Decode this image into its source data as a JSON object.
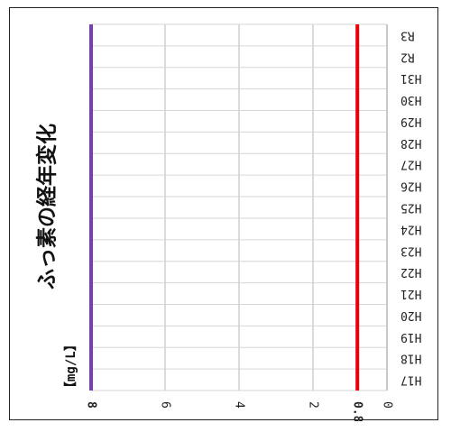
{
  "chart_data": {
    "type": "line",
    "title": "ふっ素の経年変化",
    "ylabel": "【mg/L】",
    "categories": [
      "H17",
      "H18",
      "H19",
      "H20",
      "H21",
      "H22",
      "H23",
      "H24",
      "H25",
      "H26",
      "H27",
      "H28",
      "H29",
      "H30",
      "H31",
      "R2",
      "R3"
    ],
    "ylim": [
      0,
      8
    ],
    "yticks": [
      "0",
      "0.8",
      "2",
      "4",
      "6",
      "8"
    ],
    "yticks_highlight": {
      "0.8": "#e8000b",
      "8": "#7a3db8"
    },
    "grid": true,
    "series": [
      {
        "values": [
          8,
          8,
          8,
          8,
          8,
          8,
          8,
          8,
          8,
          8,
          8,
          8,
          8,
          8,
          8,
          8,
          8
        ],
        "color": "#7a3db8"
      },
      {
        "values": [
          0.8,
          0.8,
          0.8,
          0.8,
          0.8,
          0.8,
          0.8,
          0.8,
          0.8,
          0.8,
          0.8,
          0.8,
          0.8,
          0.8,
          0.8,
          0.8,
          0.8
        ],
        "color": "#e8000b"
      }
    ]
  }
}
